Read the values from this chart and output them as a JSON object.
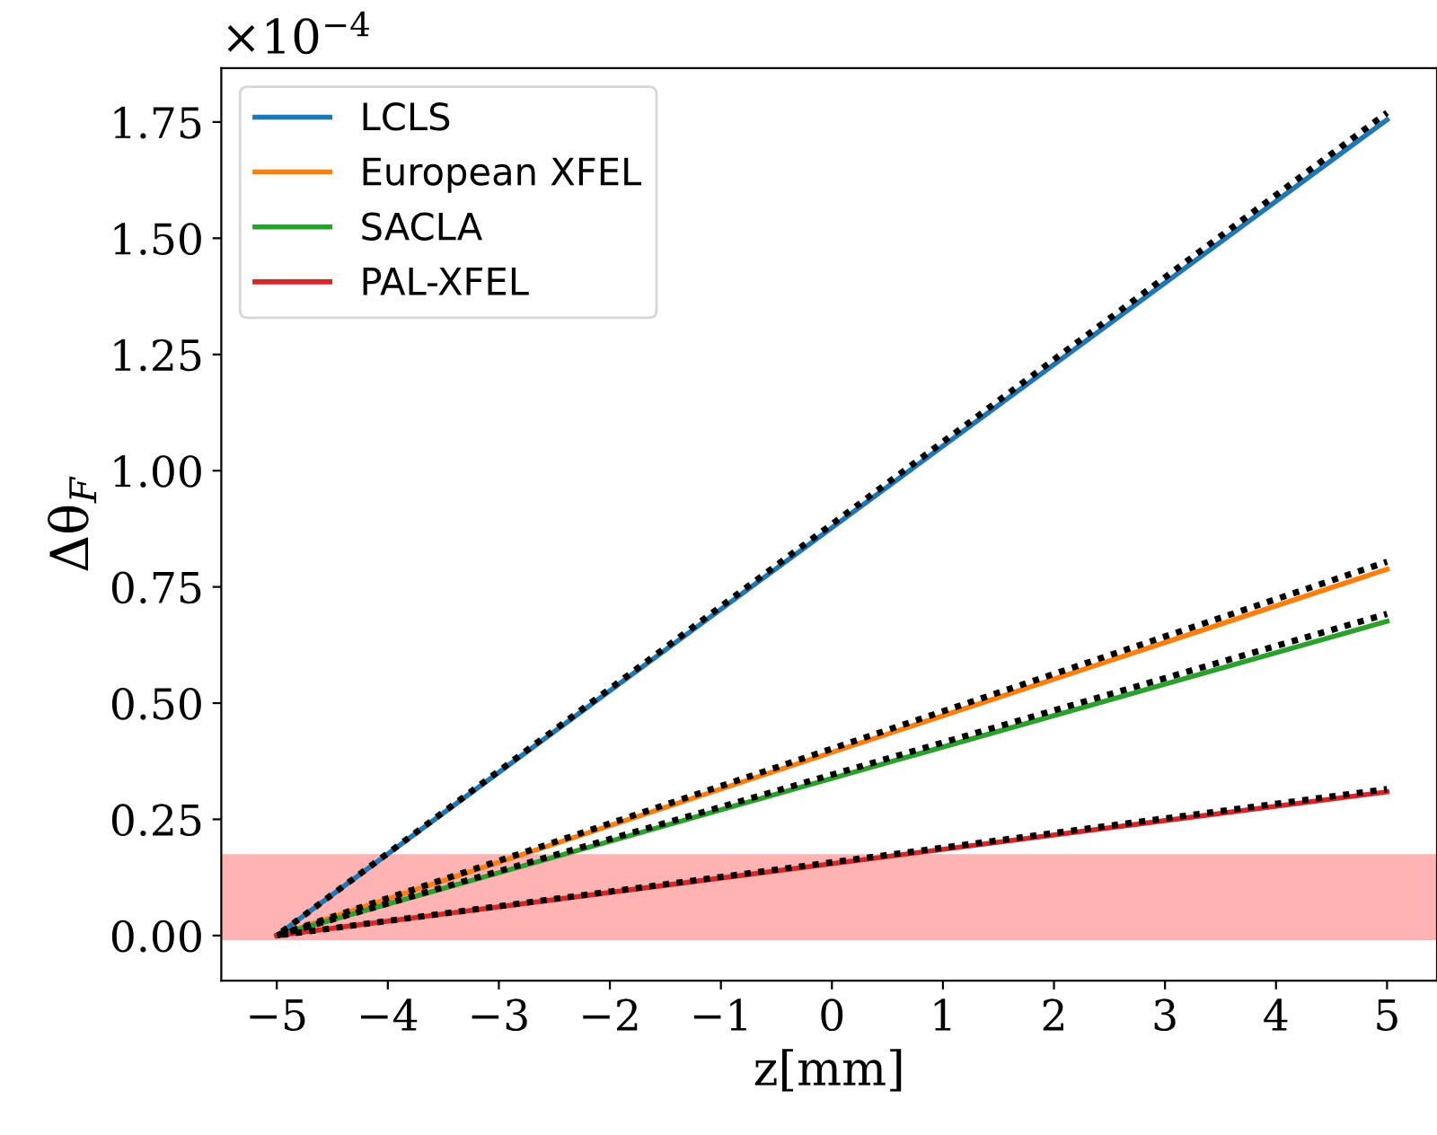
{
  "chart_data": {
    "type": "line",
    "xlabel": "z[mm]",
    "ylabel": "Δθ$_{F}$",
    "annotations": [
      "×10$^{−4}$"
    ],
    "x": [
      -5,
      5
    ],
    "xlim": [
      -5.5,
      5.45
    ],
    "ylim": [
      -0.097,
      1.866
    ],
    "xticks": [
      {
        "value": -5,
        "label": "−5"
      },
      {
        "value": -4,
        "label": "−4"
      },
      {
        "value": -3,
        "label": "−3"
      },
      {
        "value": -2,
        "label": "−2"
      },
      {
        "value": -1,
        "label": "−1"
      },
      0,
      1,
      2,
      3,
      4,
      5
    ],
    "yticks": [
      {
        "value": 0,
        "label": "0.00"
      },
      {
        "value": 0.25,
        "label": "0.25"
      },
      {
        "value": 0.5,
        "label": "0.50"
      },
      {
        "value": 0.75,
        "label": "0.75"
      },
      {
        "value": 1,
        "label": "1.00"
      },
      {
        "value": 1.25,
        "label": "1.25"
      },
      {
        "value": 1.5,
        "label": "1.50"
      },
      {
        "value": 1.75,
        "label": "1.75"
      }
    ],
    "series": [
      {
        "name": "LCLS",
        "color": "#1f77b4",
        "values": [
          0,
          1.755
        ]
      },
      {
        "name": "European XFEL",
        "color": "#ff7f0e",
        "values": [
          0,
          0.788
        ]
      },
      {
        "name": "SACLA",
        "color": "#2ca02c",
        "values": [
          0,
          0.676
        ]
      },
      {
        "name": "PAL-XFEL",
        "color": "#d62728",
        "values": [
          0,
          0.309
        ]
      },
      {
        "color": "#000000",
        "line_style": "dotted",
        "values": [
          0,
          1.77
        ]
      },
      {
        "color": "#000000",
        "line_style": "dotted",
        "values": [
          0,
          0.804
        ]
      },
      {
        "color": "#000000",
        "line_style": "dotted",
        "values": [
          0,
          0.692
        ]
      },
      {
        "color": "#000000",
        "line_style": "dotted",
        "values": [
          0,
          0.315
        ]
      }
    ],
    "bands": [
      {
        "axis": "y",
        "from": -0.01,
        "to": 0.175,
        "color": "#ffb3b3"
      }
    ],
    "legend": "top left",
    "grid": false
  }
}
